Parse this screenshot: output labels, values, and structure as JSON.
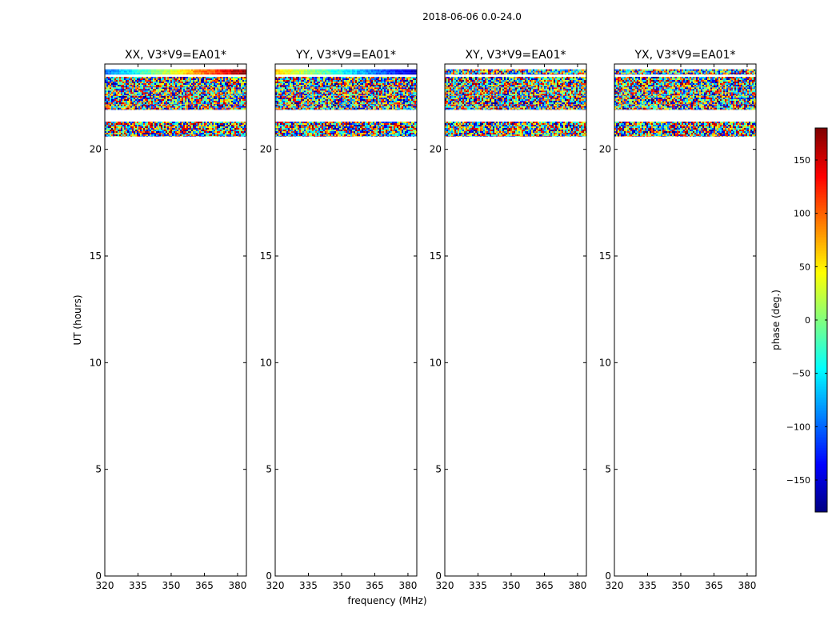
{
  "chart_data": {
    "type": "heatmap",
    "suptitle": "2018-06-06 0.0-24.0",
    "xlabel": "frequency (MHz)",
    "ylabel": "UT (hours)",
    "xlim": [
      320,
      384
    ],
    "ylim": [
      0,
      24
    ],
    "xticks": [
      "320",
      "335",
      "350",
      "365",
      "380"
    ],
    "yticks": [
      "0",
      "5",
      "10",
      "15",
      "20"
    ],
    "panels": [
      {
        "title": "XX, V3*V9=EA01*",
        "first_row_mode": "gradient",
        "first_row_phase": [
          -100,
          180
        ]
      },
      {
        "title": "YY, V3*V9=EA01*",
        "first_row_mode": "gradient",
        "first_row_phase": [
          60,
          -160
        ]
      },
      {
        "title": "XY, V3*V9=EA01*",
        "first_row_mode": "noise"
      },
      {
        "title": "YX, V3*V9=EA01*",
        "first_row_mode": "noise"
      }
    ],
    "data_rows_ut_hours": [
      [
        23.5,
        23.75
      ],
      [
        22.9,
        23.4
      ],
      [
        22.5,
        22.9
      ],
      [
        22.1,
        22.5
      ],
      [
        21.85,
        22.1
      ],
      [
        20.85,
        21.3
      ],
      [
        20.6,
        20.85
      ]
    ],
    "colorbar": {
      "label": "phase (deg.)",
      "range": [
        -180,
        180
      ],
      "ticks": [
        "150",
        "100",
        "50",
        "0",
        "−50",
        "−100",
        "−150"
      ],
      "tick_values": [
        150,
        100,
        50,
        0,
        -50,
        -100,
        -150
      ],
      "colormap": [
        "#00007f",
        "#0000ff",
        "#007fff",
        "#00ffff",
        "#7fff7f",
        "#ffff00",
        "#ff7f00",
        "#ff0000",
        "#7f0000"
      ]
    }
  }
}
